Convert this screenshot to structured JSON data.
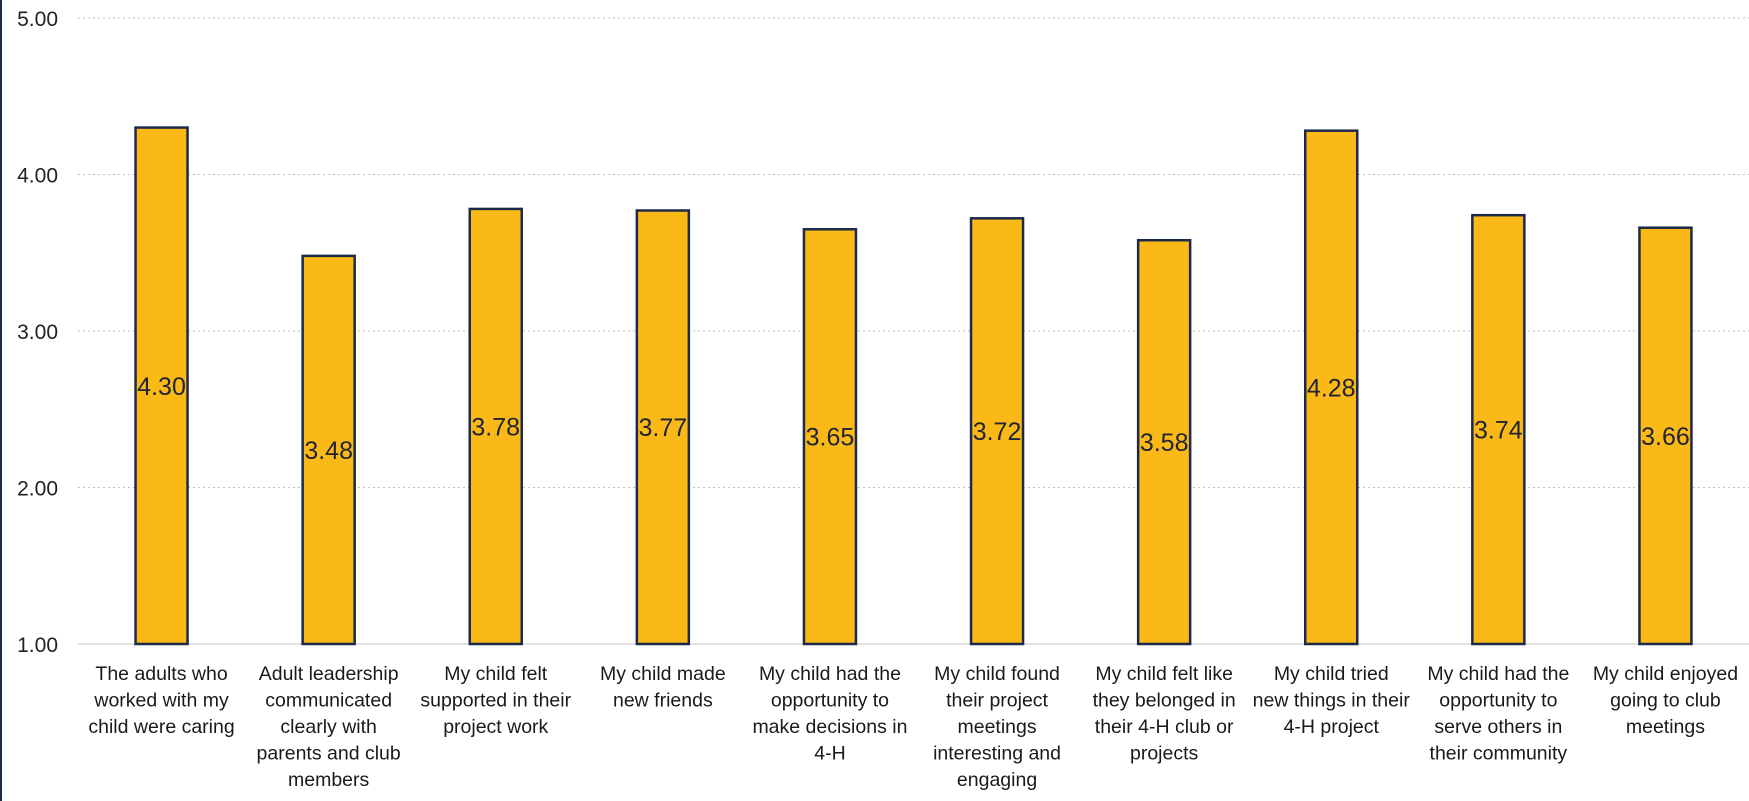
{
  "chart_data": {
    "type": "bar",
    "title": "",
    "xlabel": "",
    "ylabel": "",
    "ylim": [
      1.0,
      5.0
    ],
    "y_ticks": [
      "1.00",
      "2.00",
      "3.00",
      "4.00",
      "5.00"
    ],
    "grid": true,
    "legend": "none",
    "categories": [
      [
        "The adults who",
        "worked with my",
        "child were caring"
      ],
      [
        "Adult leadership",
        "communicated",
        "clearly with",
        "parents and club",
        "members"
      ],
      [
        "My child felt",
        "supported in their",
        "project work"
      ],
      [
        "My child made",
        "new friends"
      ],
      [
        "My child had the",
        "opportunity to",
        "make decisions in",
        "4-H"
      ],
      [
        "My child found",
        "their project",
        "meetings",
        "interesting and",
        "engaging"
      ],
      [
        "My child felt like",
        "they belonged in",
        "their 4-H club or",
        "projects"
      ],
      [
        "My child tried",
        "new things in their",
        "4-H project"
      ],
      [
        "My child had the",
        "opportunity to",
        "serve others in",
        "their community"
      ],
      [
        "My child enjoyed",
        "going to club",
        "meetings"
      ]
    ],
    "values": [
      4.3,
      3.48,
      3.78,
      3.77,
      3.65,
      3.72,
      3.58,
      4.28,
      3.74,
      3.66
    ],
    "data_labels": [
      "4.30",
      "3.48",
      "3.78",
      "3.77",
      "3.65",
      "3.72",
      "3.58",
      "4.28",
      "3.74",
      "3.66"
    ],
    "colors": {
      "bar_fill": "#FBB917",
      "bar_stroke": "#1B2A4A",
      "grid": "#BFBFBF",
      "axis": "#D9D9D9"
    }
  }
}
